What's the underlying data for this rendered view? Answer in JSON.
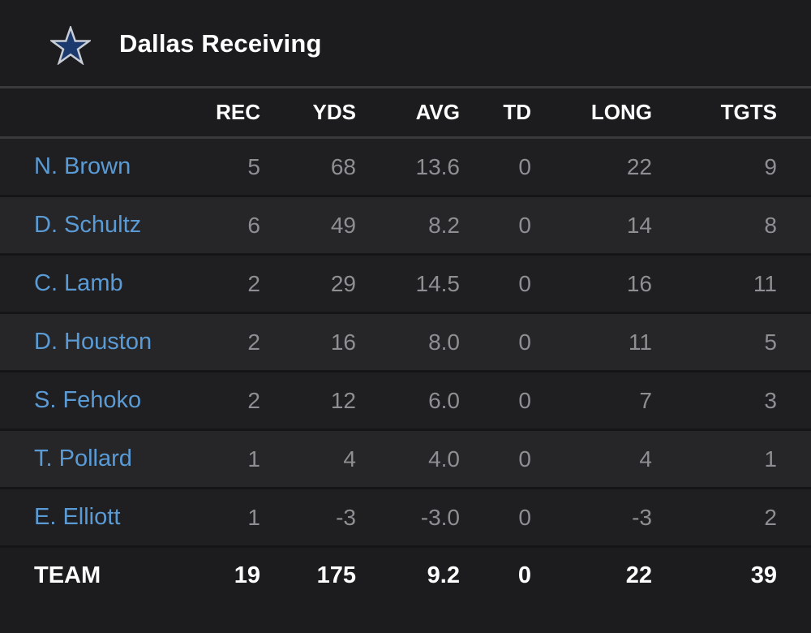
{
  "header": {
    "title": "Dallas Receiving",
    "logo_icon": "dallas-star-icon",
    "logo_color": "#1d3a6e"
  },
  "columns": [
    "REC",
    "YDS",
    "AVG",
    "TD",
    "LONG",
    "TGTS"
  ],
  "players": [
    {
      "name": "N. Brown",
      "rec": "5",
      "yds": "68",
      "avg": "13.6",
      "td": "0",
      "long": "22",
      "tgts": "9"
    },
    {
      "name": "D. Schultz",
      "rec": "6",
      "yds": "49",
      "avg": "8.2",
      "td": "0",
      "long": "14",
      "tgts": "8"
    },
    {
      "name": "C. Lamb",
      "rec": "2",
      "yds": "29",
      "avg": "14.5",
      "td": "0",
      "long": "16",
      "tgts": "11"
    },
    {
      "name": "D. Houston",
      "rec": "2",
      "yds": "16",
      "avg": "8.0",
      "td": "0",
      "long": "11",
      "tgts": "5"
    },
    {
      "name": "S. Fehoko",
      "rec": "2",
      "yds": "12",
      "avg": "6.0",
      "td": "0",
      "long": "7",
      "tgts": "3"
    },
    {
      "name": "T. Pollard",
      "rec": "1",
      "yds": "4",
      "avg": "4.0",
      "td": "0",
      "long": "4",
      "tgts": "1"
    },
    {
      "name": "E. Elliott",
      "rec": "1",
      "yds": "-3",
      "avg": "-3.0",
      "td": "0",
      "long": "-3",
      "tgts": "2"
    }
  ],
  "team_total": {
    "label": "TEAM",
    "rec": "19",
    "yds": "175",
    "avg": "9.2",
    "td": "0",
    "long": "22",
    "tgts": "39"
  },
  "colors": {
    "background": "#1c1c1e",
    "player_link": "#5b9bd5",
    "stat_text": "#8e8e93",
    "header_text": "#ffffff"
  }
}
